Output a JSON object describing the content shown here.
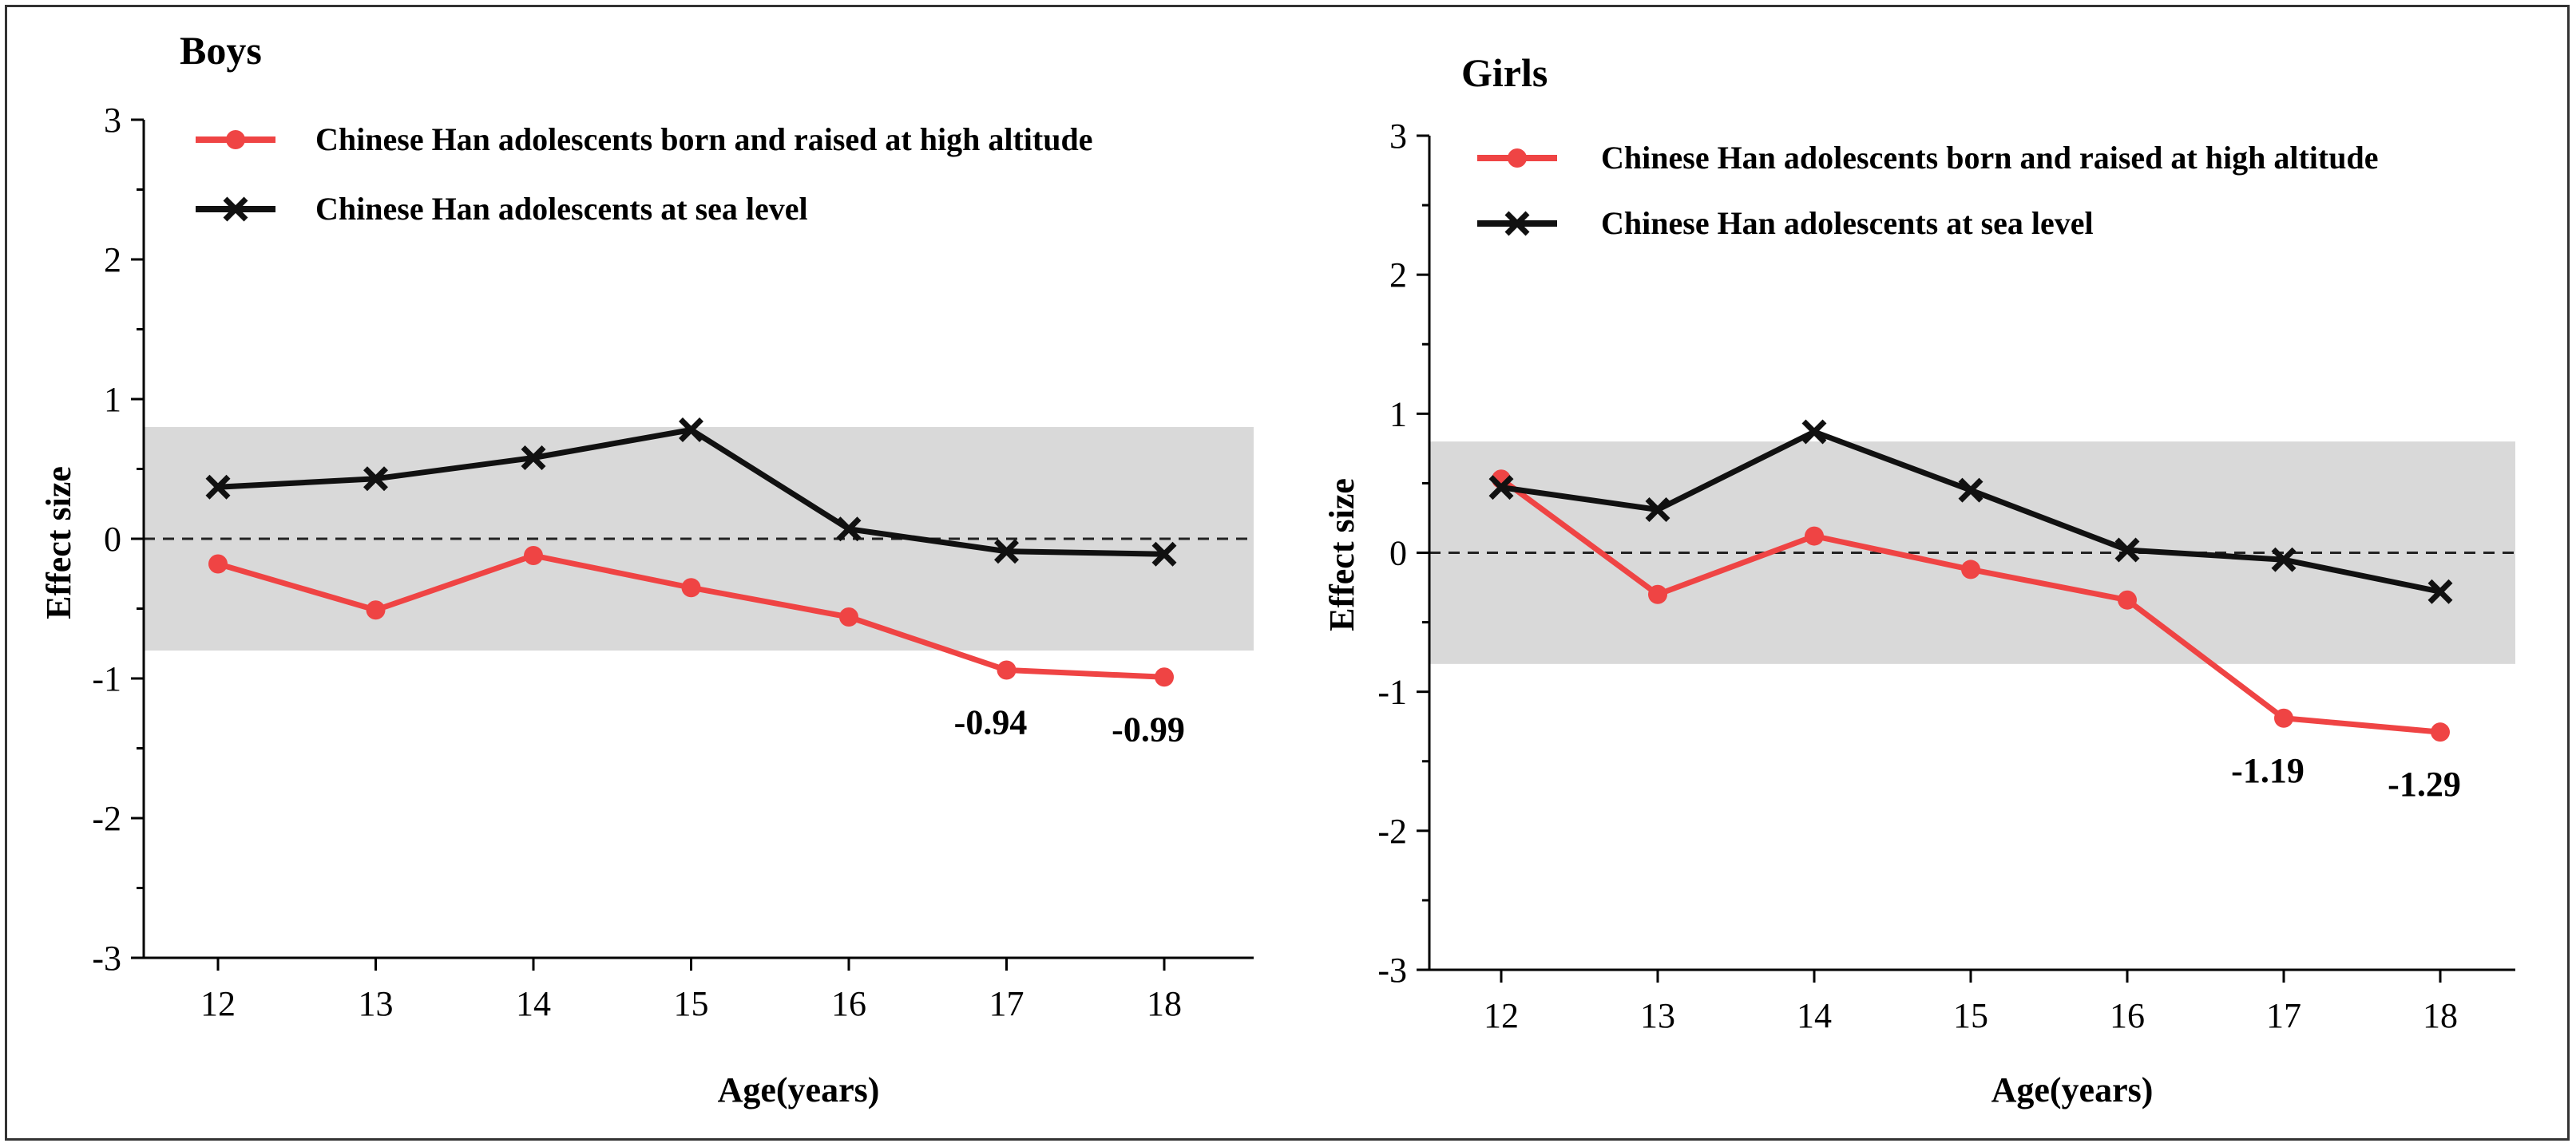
{
  "chart_data": [
    {
      "type": "line",
      "title": "Boys",
      "xlabel": "Age(years)",
      "ylabel": "Effect size",
      "categories": [
        "12",
        "13",
        "14",
        "15",
        "16",
        "17",
        "18"
      ],
      "ylim": [
        -3,
        3
      ],
      "yticks": [
        "3",
        "2",
        "1",
        "0",
        "-1",
        "-2",
        "-3"
      ],
      "band": [
        -0.8,
        0.8
      ],
      "band_color": "#d9d9d9",
      "series": [
        {
          "name": "Chinese Han adolescents born and raised at high altitude",
          "color": "#ef4444",
          "marker": "circle",
          "values": [
            -0.18,
            -0.51,
            -0.12,
            -0.35,
            -0.56,
            -0.94,
            -0.99
          ]
        },
        {
          "name": "Chinese Han adolescents at sea level",
          "color": "#111111",
          "marker": "x",
          "values": [
            0.37,
            0.43,
            0.58,
            0.78,
            0.07,
            -0.09,
            -0.11
          ]
        }
      ],
      "annotations": [
        {
          "category": "17",
          "value": -0.94,
          "text": "-0.94"
        },
        {
          "category": "18",
          "value": -0.99,
          "text": "-0.99"
        }
      ]
    },
    {
      "type": "line",
      "title": "Girls",
      "xlabel": "Age(years)",
      "ylabel": "Effect size",
      "categories": [
        "12",
        "13",
        "14",
        "15",
        "16",
        "17",
        "18"
      ],
      "ylim": [
        -3,
        3
      ],
      "yticks": [
        "3",
        "2",
        "1",
        "0",
        "-1",
        "-2",
        "-3"
      ],
      "band": [
        -0.8,
        0.8
      ],
      "band_color": "#d9d9d9",
      "series": [
        {
          "name": "Chinese Han adolescents born and raised at high altitude",
          "color": "#ef4444",
          "marker": "circle",
          "values": [
            0.53,
            -0.3,
            0.12,
            -0.12,
            -0.34,
            -1.19,
            -1.29
          ]
        },
        {
          "name": "Chinese Han adolescents at sea level",
          "color": "#111111",
          "marker": "x",
          "values": [
            0.47,
            0.31,
            0.87,
            0.45,
            0.02,
            -0.05,
            -0.28
          ]
        }
      ],
      "annotations": [
        {
          "category": "17",
          "value": -1.19,
          "text": "-1.19"
        },
        {
          "category": "18",
          "value": -1.29,
          "text": "-1.29"
        }
      ]
    }
  ]
}
